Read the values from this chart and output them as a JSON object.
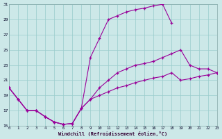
{
  "xlabel": "Windchill (Refroidissement éolien,°C)",
  "bg_color": "#cce8e8",
  "line_color": "#990099",
  "grid_color": "#99cccc",
  "xlim": [
    0,
    23
  ],
  "ylim": [
    15,
    31
  ],
  "xticks": [
    0,
    1,
    2,
    3,
    4,
    5,
    6,
    7,
    8,
    9,
    10,
    11,
    12,
    13,
    14,
    15,
    16,
    17,
    18,
    19,
    20,
    21,
    22,
    23
  ],
  "yticks": [
    15,
    17,
    19,
    21,
    23,
    25,
    27,
    29,
    31
  ],
  "curves": [
    {
      "x": [
        0,
        1,
        2,
        3,
        4,
        5,
        6,
        7,
        8,
        9,
        10,
        11,
        12,
        13,
        14,
        15,
        16,
        17,
        18,
        19,
        20,
        21,
        22,
        23
      ],
      "y": [
        20,
        18.5,
        17,
        17,
        16.2,
        15.5,
        15.2,
        15.3,
        17.3,
        24,
        26.5,
        29,
        29.5,
        30,
        30.3,
        30.5,
        30.8,
        31,
        28.5,
        null,
        null,
        null,
        null,
        null
      ]
    },
    {
      "x": [
        0,
        1,
        2,
        3,
        4,
        5,
        6,
        7,
        8,
        9,
        10,
        11,
        12,
        13,
        14,
        15,
        16,
        17,
        18,
        19,
        20,
        21,
        22,
        23
      ],
      "y": [
        20,
        18.5,
        17,
        17,
        16.2,
        15.5,
        15.2,
        15.3,
        17.3,
        18.5,
        20,
        21,
        22,
        22.5,
        23,
        23.2,
        23.5,
        24,
        24.5,
        25,
        23,
        22.5,
        22.5,
        22
      ]
    },
    {
      "x": [
        0,
        1,
        2,
        3,
        4,
        5,
        6,
        7,
        8,
        9,
        10,
        11,
        12,
        13,
        14,
        15,
        16,
        17,
        18,
        19,
        20,
        21,
        22,
        23
      ],
      "y": [
        20,
        18.5,
        17,
        17,
        16.2,
        15.5,
        15.2,
        15.3,
        17.3,
        18.5,
        19,
        19.5,
        20,
        20.3,
        20.7,
        21,
        21.3,
        21.5,
        22,
        21,
        21.2,
        21.5,
        21.7,
        22
      ]
    }
  ]
}
